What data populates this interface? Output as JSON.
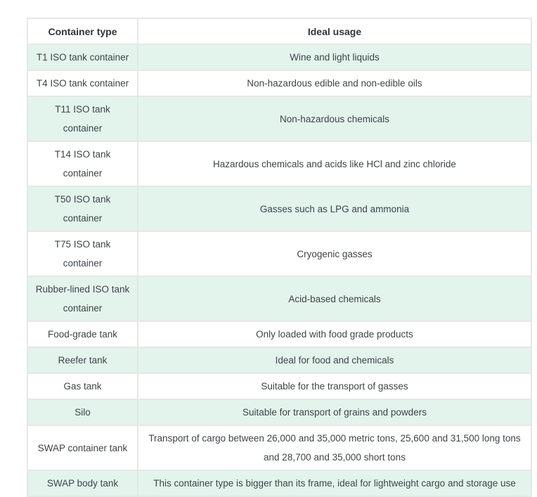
{
  "table": {
    "header": {
      "container_type": "Container type",
      "ideal_usage": "Ideal usage"
    },
    "rows": [
      {
        "container_type": "T1 ISO tank container",
        "ideal_usage": "Wine and light liquids"
      },
      {
        "container_type": "T4 ISO tank container",
        "ideal_usage": "Non-hazardous edible and non-edible oils"
      },
      {
        "container_type": "T11 ISO tank container",
        "ideal_usage": "Non-hazardous chemicals"
      },
      {
        "container_type": "T14 ISO tank container",
        "ideal_usage": "Hazardous chemicals and acids like HCl and zinc chloride"
      },
      {
        "container_type": "T50 ISO tank\ncontainer",
        "ideal_usage": "Gasses such as LPG and ammonia"
      },
      {
        "container_type": "T75 ISO tank\ncontainer",
        "ideal_usage": "Cryogenic gasses"
      },
      {
        "container_type": "Rubber-lined ISO tank\ncontainer",
        "ideal_usage": "Acid-based chemicals"
      },
      {
        "container_type": "Food-grade tank",
        "ideal_usage": "Only loaded with food grade products"
      },
      {
        "container_type": "Reefer tank",
        "ideal_usage": "Ideal for food and chemicals"
      },
      {
        "container_type": "Gas tank",
        "ideal_usage": "Suitable for the transport of gasses"
      },
      {
        "container_type": "Silo",
        "ideal_usage": "Suitable for transport of grains and powders"
      },
      {
        "container_type": "SWAP container tank",
        "ideal_usage": "Transport of cargo between 26,000 and 35,000 metric tons, 25,600 and 31,500 long tons and 28,700 and 35,000 short tons"
      },
      {
        "container_type": "SWAP body tank",
        "ideal_usage": "This container type is bigger than its frame, ideal for lightweight cargo and storage use"
      }
    ]
  },
  "colors": {
    "row_highlight": "#e2f4ec",
    "border": "#e7e7e7",
    "text": "#3f4449",
    "header_text": "#30353a",
    "background": "#ffffff"
  }
}
